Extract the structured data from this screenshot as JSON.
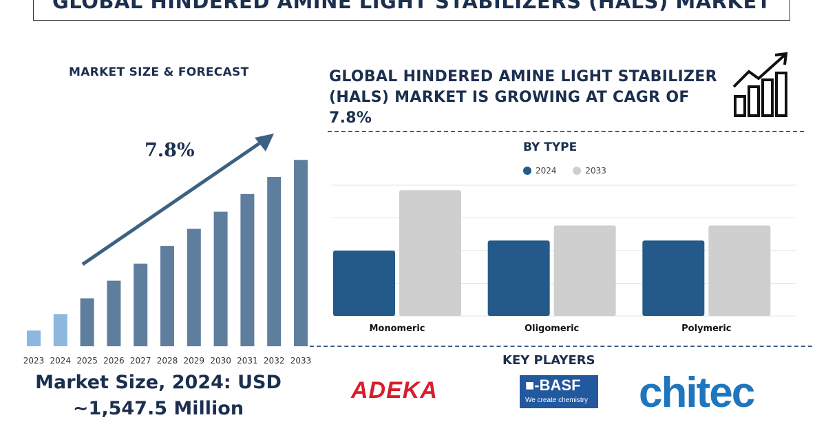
{
  "title": "GLOBAL HINDERED AMINE LIGHT STABILIZERS (HALS) MARKET",
  "left_panel": {
    "label": "MARKET SIZE & FORECAST",
    "cagr": "7.8%",
    "market_size_line1": "Market Size, 2024: USD",
    "market_size_line2": "~1,547.5 Million"
  },
  "headline": "GLOBAL HINDERED AMINE LIGHT STABILIZER (HALS) MARKET IS GROWING AT CAGR OF 7.8%",
  "type_panel": {
    "title": "BY TYPE"
  },
  "key_players": {
    "title": "KEY PLAYERS",
    "logos": {
      "adeka": "ADEKA",
      "basf_mark": "■-BASF",
      "basf_tagline": "We create chemistry",
      "chitec": "chitec"
    }
  },
  "colors": {
    "bar_highlight": "#8db7de",
    "bar_main": "#5f7e9e",
    "series_2024": "#245a8a",
    "series_2033": "#cfcfcf",
    "arrow": "#3b6283",
    "text_dark": "#1b2f4f"
  },
  "chart_data": [
    {
      "type": "bar",
      "categories": [
        "2023",
        "2024",
        "2025",
        "2026",
        "2027",
        "2028",
        "2029",
        "2030",
        "2031",
        "2032",
        "2033"
      ],
      "values": [
        24,
        49,
        73,
        100,
        126,
        153,
        179,
        205,
        232,
        258,
        284
      ],
      "highlight_categories": [
        "2023",
        "2024"
      ],
      "annotation": "7.8%",
      "title": "MARKET SIZE & FORECAST",
      "xlabel": "",
      "ylabel": "",
      "ylim": [
        0,
        300
      ],
      "grid": false
    },
    {
      "type": "bar",
      "title": "BY TYPE",
      "categories": [
        "Monomeric",
        "Oligomeric",
        "Polymeric"
      ],
      "series": [
        {
          "name": "2024",
          "values": [
            2.6,
            3.0,
            3.0
          ]
        },
        {
          "name": "2033",
          "values": [
            5.0,
            3.6,
            3.6
          ]
        }
      ],
      "ylim": [
        0,
        5.2
      ],
      "grid": true,
      "legend": "top-center"
    }
  ]
}
